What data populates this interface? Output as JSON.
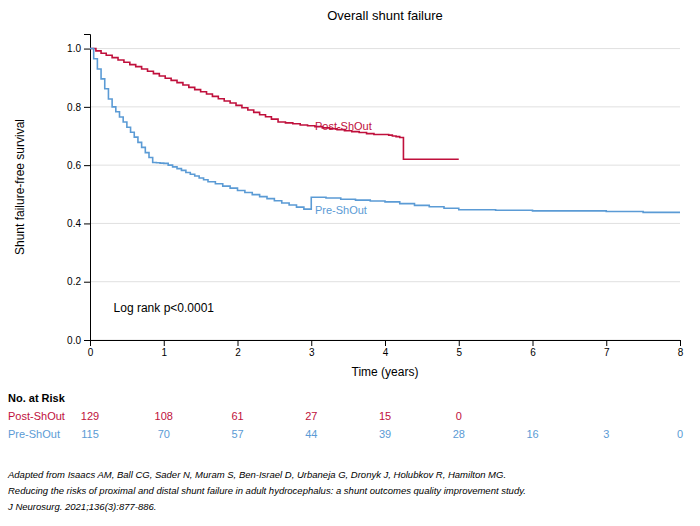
{
  "chart_data": {
    "type": "step",
    "title": "Overall shunt failure",
    "xlabel": "Time (years)",
    "ylabel": "Shunt failure-free survival",
    "xlim": [
      0,
      8
    ],
    "ylim": [
      0.0,
      1.05
    ],
    "xticks": [
      0,
      1,
      2,
      3,
      4,
      5,
      6,
      7,
      8
    ],
    "yticks": [
      {
        "value": 0.0,
        "label": "0.0"
      },
      {
        "value": 0.2,
        "label": "0.2"
      },
      {
        "value": 0.4,
        "label": "0.4"
      },
      {
        "value": 0.6,
        "label": "0.6"
      },
      {
        "value": 0.8,
        "label": "0.8"
      },
      {
        "value": 1.0,
        "label": "1.0"
      }
    ],
    "grid": true,
    "series": [
      {
        "name": "Post-ShOut",
        "color": "#C0103C",
        "label_x": 3.05,
        "label_y": 0.735,
        "x": [
          0,
          0.08,
          0.15,
          0.22,
          0.3,
          0.38,
          0.46,
          0.54,
          0.62,
          0.7,
          0.78,
          0.86,
          0.94,
          1.02,
          1.1,
          1.18,
          1.26,
          1.34,
          1.42,
          1.5,
          1.58,
          1.66,
          1.74,
          1.82,
          1.9,
          1.98,
          2.06,
          2.14,
          2.22,
          2.3,
          2.38,
          2.46,
          2.55,
          2.65,
          2.75,
          2.85,
          2.95,
          3.05,
          3.15,
          3.25,
          3.35,
          3.45,
          3.55,
          3.65,
          3.75,
          3.85,
          3.95,
          4.05,
          4.1,
          4.15,
          4.2,
          4.25,
          5.0
        ],
        "values": [
          1.0,
          0.992,
          0.984,
          0.977,
          0.969,
          0.961,
          0.953,
          0.945,
          0.938,
          0.93,
          0.922,
          0.914,
          0.906,
          0.898,
          0.891,
          0.883,
          0.875,
          0.867,
          0.859,
          0.852,
          0.844,
          0.836,
          0.828,
          0.82,
          0.813,
          0.805,
          0.797,
          0.789,
          0.781,
          0.773,
          0.766,
          0.758,
          0.748,
          0.745,
          0.742,
          0.738,
          0.735,
          0.732,
          0.728,
          0.725,
          0.722,
          0.718,
          0.715,
          0.712,
          0.708,
          0.705,
          0.705,
          0.703,
          0.7,
          0.698,
          0.695,
          0.62,
          0.62
        ]
      },
      {
        "name": "Pre-ShOut",
        "color": "#5B9BD5",
        "label_x": 3.05,
        "label_y": 0.445,
        "x": [
          0,
          0.05,
          0.1,
          0.15,
          0.2,
          0.25,
          0.3,
          0.35,
          0.4,
          0.45,
          0.5,
          0.55,
          0.6,
          0.65,
          0.7,
          0.75,
          0.8,
          0.85,
          0.9,
          0.95,
          1.0,
          1.06,
          1.12,
          1.18,
          1.24,
          1.3,
          1.36,
          1.42,
          1.48,
          1.54,
          1.6,
          1.7,
          1.8,
          1.9,
          2.0,
          2.1,
          2.2,
          2.3,
          2.4,
          2.5,
          2.6,
          2.7,
          2.8,
          2.9,
          3.0,
          3.2,
          3.4,
          3.6,
          3.8,
          4.0,
          4.2,
          4.4,
          4.6,
          4.8,
          5.0,
          5.5,
          6.0,
          6.5,
          7.0,
          7.5,
          8.0
        ],
        "values": [
          1.0,
          0.965,
          0.93,
          0.896,
          0.862,
          0.827,
          0.8,
          0.783,
          0.765,
          0.748,
          0.73,
          0.713,
          0.696,
          0.678,
          0.661,
          0.643,
          0.626,
          0.609,
          0.608,
          0.607,
          0.606,
          0.6,
          0.594,
          0.588,
          0.582,
          0.575,
          0.569,
          0.563,
          0.556,
          0.55,
          0.543,
          0.536,
          0.528,
          0.521,
          0.513,
          0.506,
          0.499,
          0.492,
          0.485,
          0.478,
          0.47,
          0.463,
          0.456,
          0.449,
          0.49,
          0.487,
          0.483,
          0.48,
          0.477,
          0.474,
          0.468,
          0.462,
          0.457,
          0.452,
          0.447,
          0.445,
          0.443,
          0.443,
          0.441,
          0.438,
          0.435
        ]
      }
    ],
    "annotations": [
      {
        "text": "Log rank p<0.0001"
      }
    ],
    "risk_table": {
      "title": "No. at Risk",
      "rows": [
        {
          "name": "Post-ShOut",
          "color": "#C0103C",
          "x": [
            0,
            1,
            2,
            3,
            4,
            5
          ],
          "values": [
            129,
            108,
            61,
            27,
            15,
            0
          ]
        },
        {
          "name": "Pre-ShOut",
          "color": "#5B9BD5",
          "x": [
            0,
            1,
            2,
            3,
            4,
            5,
            6,
            7,
            8
          ],
          "values": [
            115,
            70,
            57,
            44,
            39,
            28,
            16,
            3,
            0
          ]
        }
      ]
    },
    "caption": [
      "Adapted from Isaacs AM, Ball CG, Sader N, Muram S, Ben-Israel D, Urbaneja G, Dronyk J, Holubkov R, Hamilton MG.",
      "Reducing the risks of proximal and distal shunt failure in adult hydrocephalus: a shunt outcomes quality improvement study.",
      "J Neurosurg. 2021;136(3):877-886."
    ]
  }
}
